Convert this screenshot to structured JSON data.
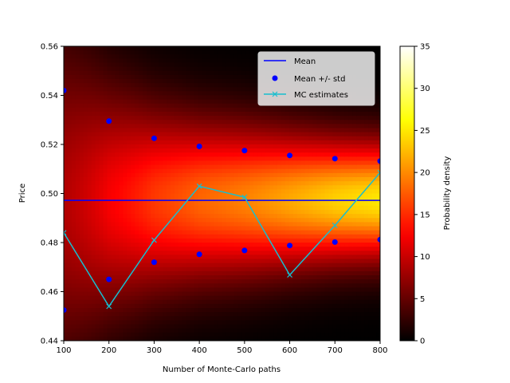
{
  "chart_data": {
    "type": "heatmap",
    "xlabel": "Number of Monte-Carlo paths",
    "ylabel": "Price",
    "xlim": [
      100,
      800
    ],
    "ylim": [
      0.44,
      0.56
    ],
    "x_ticks": [
      100,
      200,
      300,
      400,
      500,
      600,
      700,
      800
    ],
    "y_ticks": [
      0.44,
      0.46,
      0.48,
      0.5,
      0.52,
      0.54,
      0.56
    ],
    "x_tick_labels": [
      "100",
      "200",
      "300",
      "400",
      "500",
      "600",
      "700",
      "800"
    ],
    "y_tick_labels": [
      "0.44",
      "0.46",
      "0.48",
      "0.50",
      "0.52",
      "0.54",
      "0.56"
    ],
    "grid": false,
    "legend_position": "upper-right",
    "colorbar": {
      "label": "Probability density",
      "range": [
        0,
        35
      ],
      "ticks": [
        0,
        5,
        10,
        15,
        20,
        25,
        30,
        35
      ],
      "tick_labels": [
        "0",
        "5",
        "10",
        "15",
        "20",
        "25",
        "30",
        "35"
      ],
      "colormap": "hot"
    },
    "density": {
      "mean": 0.4972,
      "std_by_paths": [
        {
          "x": 100,
          "std": 0.0449
        },
        {
          "x": 200,
          "std": 0.0321
        },
        {
          "x": 300,
          "std": 0.0254
        },
        {
          "x": 400,
          "std": 0.0221
        },
        {
          "x": 500,
          "std": 0.0204
        },
        {
          "x": 600,
          "std": 0.0185
        },
        {
          "x": 700,
          "std": 0.0169
        },
        {
          "x": 800,
          "std": 0.016
        }
      ]
    },
    "series": [
      {
        "name": "Mean",
        "type": "line",
        "color": "#0000ff",
        "x": [
          100,
          800
        ],
        "y": [
          0.4972,
          0.4972
        ]
      },
      {
        "name": "Mean +/- std",
        "type": "scatter",
        "color": "#0000ff",
        "x": [
          100,
          200,
          300,
          400,
          500,
          600,
          700,
          800
        ],
        "y_upper": [
          0.542,
          0.5295,
          0.5225,
          0.5192,
          0.5175,
          0.5155,
          0.5142,
          0.5132
        ],
        "y_lower": [
          0.4525,
          0.465,
          0.472,
          0.4752,
          0.4768,
          0.4788,
          0.4802,
          0.4812
        ]
      },
      {
        "name": "MC estimates",
        "type": "line",
        "marker": "x",
        "color": "#17becf",
        "x": [
          100,
          200,
          300,
          400,
          500,
          600,
          700,
          800
        ],
        "y": [
          0.484,
          0.454,
          0.481,
          0.503,
          0.4985,
          0.4668,
          0.487,
          0.5085
        ]
      }
    ]
  }
}
